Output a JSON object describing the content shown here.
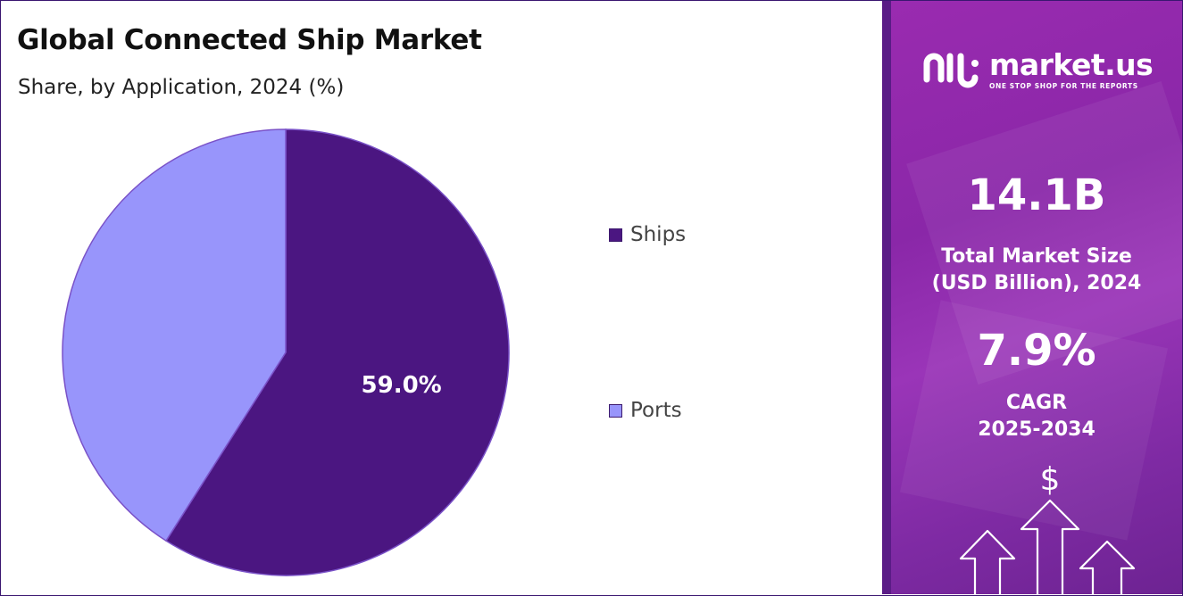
{
  "header": {
    "title": "Global Connected Ship Market",
    "subtitle": "Share, by Application, 2024 (%)"
  },
  "chart_data": {
    "type": "pie",
    "categories": [
      "Ships",
      "Ports"
    ],
    "values": [
      59.0,
      41.0
    ],
    "data_labels": [
      "59.0%",
      ""
    ],
    "colors": [
      "#4b1681",
      "#9895fb"
    ],
    "legend": {
      "placement": "right",
      "items": [
        {
          "label": "Ships",
          "color": "#4b1681"
        },
        {
          "label": "Ports",
          "color": "#9895fb"
        }
      ]
    }
  },
  "sidebar": {
    "logo": {
      "name": "market.us",
      "tagline": "ONE STOP SHOP FOR THE REPORTS",
      "icon": "market-us-logo-icon"
    },
    "market_size": {
      "value": "14.1B",
      "label_line1": "Total Market Size",
      "label_line2": "(USD Billion), 2024"
    },
    "cagr": {
      "value": "7.9%",
      "label_line1": "CAGR",
      "label_line2": "2025-2034"
    },
    "growth_symbol": "$",
    "decor_icon": "growth-arrows-icon"
  }
}
